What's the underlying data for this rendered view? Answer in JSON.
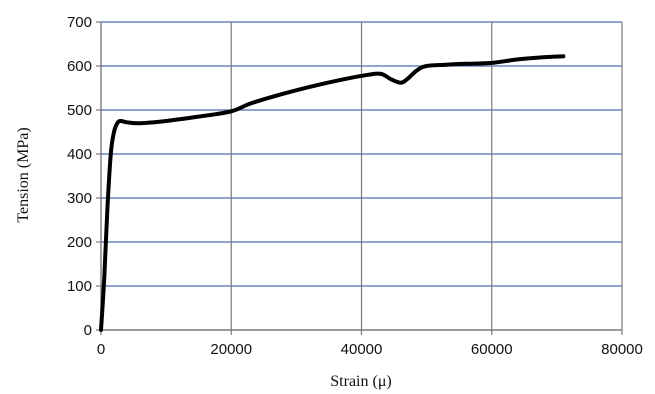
{
  "chart_data": {
    "type": "line",
    "title": "",
    "xlabel": "Strain (μ)",
    "ylabel": "Tension (MPa)",
    "xlim": [
      0,
      80000
    ],
    "ylim": [
      0,
      700
    ],
    "x_ticks": [
      0,
      20000,
      40000,
      60000,
      80000
    ],
    "y_ticks": [
      0,
      100,
      200,
      300,
      400,
      500,
      600,
      700
    ],
    "x_tick_labels": [
      "0",
      "20000",
      "40000",
      "60000",
      "80000"
    ],
    "y_tick_labels": [
      "0",
      "100",
      "200",
      "300",
      "400",
      "500",
      "600",
      "700"
    ],
    "grid": true,
    "legend": "none",
    "colors": {
      "line": "#000000",
      "grid_horizontal": "#4a6fb5",
      "grid_vertical": "#7a7a7a",
      "frame": "#7a7a7a"
    },
    "series": [
      {
        "x": [
          0,
          500,
          1000,
          1500,
          2000,
          2500,
          3000,
          4000,
          6000,
          10000,
          15000,
          20000,
          23000,
          28000,
          33000,
          38000,
          41000,
          43000,
          44500,
          46000,
          47000,
          48500,
          50000,
          53000,
          56000,
          60000,
          64000,
          68000,
          71000
        ],
        "y": [
          0,
          120,
          280,
          400,
          450,
          470,
          475,
          472,
          470,
          475,
          485,
          497,
          515,
          537,
          556,
          572,
          580,
          582,
          570,
          562,
          570,
          590,
          600,
          603,
          605,
          607,
          615,
          620,
          622
        ]
      }
    ]
  }
}
